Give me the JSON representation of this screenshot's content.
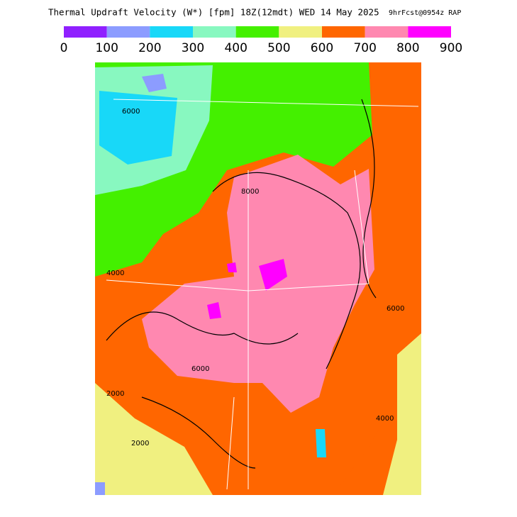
{
  "title": "Thermal Updraft Velocity (W*) [fpm] 18Z(12mdt) WED 14 May 2025",
  "subtitle": "9hrFcst@0954z RAP",
  "legend": {
    "bins": [
      0,
      100,
      200,
      300,
      400,
      500,
      600,
      700,
      800,
      900
    ],
    "colors": [
      "#9020ff",
      "#8c9cff",
      "#18d8f8",
      "#88f8c0",
      "#44f000",
      "#f0f080",
      "#ff6600",
      "#ff88b0",
      "#ff00ff"
    ]
  },
  "contour_labels": [
    "6000",
    "8000",
    "4000",
    "6000",
    "2000",
    "4000",
    "6000",
    "2000"
  ]
}
